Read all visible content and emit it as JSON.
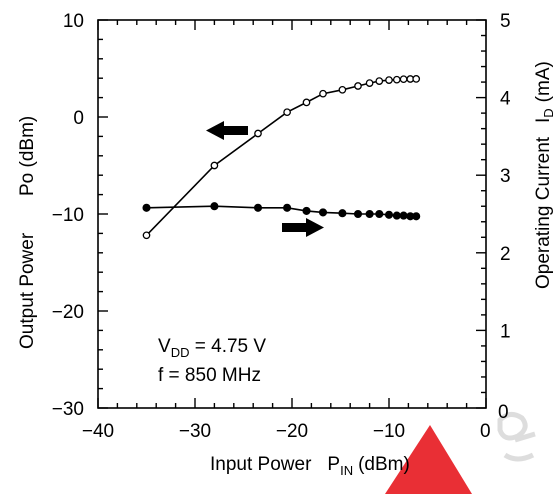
{
  "chart_data": {
    "type": "line",
    "x": {
      "label": "Input Power",
      "symbol": "P",
      "symbol_sub": "IN",
      "unit": "(dBm)",
      "range": [
        -40,
        0
      ],
      "ticks": [
        -40,
        -30,
        -20,
        -10
      ],
      "tick_labels": [
        "−40",
        "−30",
        "−20",
        "−10"
      ]
    },
    "y_left": {
      "label": "Output Power",
      "symbol": "Po (dBm)",
      "range": [
        -30,
        10
      ],
      "ticks": [
        -30,
        -20,
        -10,
        0,
        10
      ],
      "tick_labels": [
        "−30",
        "−20",
        "−10",
        "0",
        "10"
      ]
    },
    "y_right": {
      "label": "Operating Current",
      "symbol": "I",
      "symbol_sub": "D",
      "unit": "(mA)",
      "range": [
        0,
        5
      ],
      "ticks": [
        0,
        1,
        2,
        3,
        4,
        5
      ],
      "tick_labels": [
        "0",
        "1",
        "2",
        "3",
        "4",
        "5"
      ]
    },
    "x_origin_label": "0",
    "series": [
      {
        "axis": "left",
        "marker": "open-circle",
        "points": [
          [
            -35,
            -12.2
          ],
          [
            -28,
            -5
          ],
          [
            -23.5,
            -1.7
          ],
          [
            -20.5,
            0.5
          ],
          [
            -18.5,
            1.5
          ],
          [
            -16.8,
            2.4
          ],
          [
            -14.8,
            2.8
          ],
          [
            -13.2,
            3.2
          ],
          [
            -12,
            3.5
          ],
          [
            -11,
            3.7
          ],
          [
            -10,
            3.8
          ],
          [
            -9.2,
            3.85
          ],
          [
            -8.5,
            3.9
          ],
          [
            -7.8,
            3.92
          ],
          [
            -7.2,
            3.93
          ]
        ]
      },
      {
        "axis": "right",
        "marker": "filled-circle",
        "points": [
          [
            -35,
            2.58
          ],
          [
            -28,
            2.6
          ],
          [
            -23.5,
            2.58
          ],
          [
            -20.5,
            2.58
          ],
          [
            -18.5,
            2.54
          ],
          [
            -16.8,
            2.52
          ],
          [
            -14.8,
            2.51
          ],
          [
            -13.2,
            2.5
          ],
          [
            -12,
            2.5
          ],
          [
            -11,
            2.5
          ],
          [
            -10,
            2.49
          ],
          [
            -9.2,
            2.48
          ],
          [
            -8.5,
            2.48
          ],
          [
            -7.8,
            2.47
          ],
          [
            -7.2,
            2.47
          ]
        ]
      }
    ],
    "annotations": {
      "vdd_prefix": "V",
      "vdd_sub": "DD",
      "vdd_value": " = 4.75 V",
      "freq": "f = 850 MHz"
    },
    "legend_arrows": [
      {
        "points_to": "left",
        "series": 0
      },
      {
        "points_to": "right",
        "series": 1
      }
    ],
    "grid": false
  },
  "watermark_color": "#e8242a"
}
